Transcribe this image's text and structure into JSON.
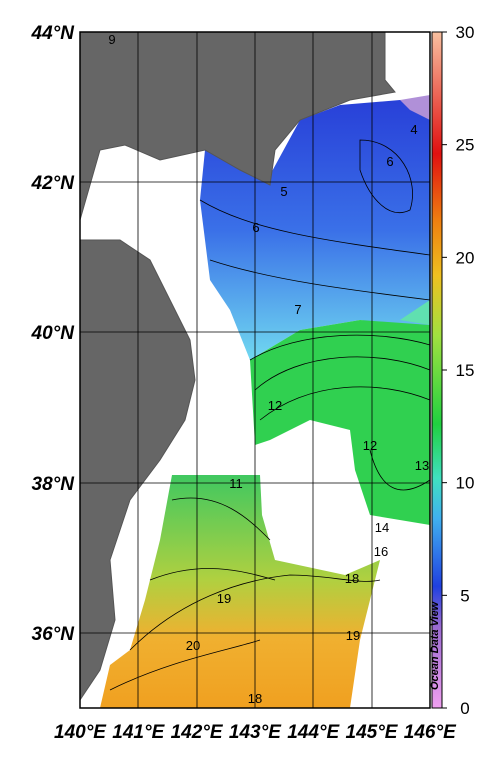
{
  "map": {
    "lat_labels": [
      "44°N",
      "42°N",
      "40°N",
      "38°N",
      "36°N"
    ],
    "lon_labels": [
      "140°E",
      "141°E",
      "142°E",
      "143°E",
      "144°E",
      "145°E",
      "146°E"
    ],
    "colorbar": {
      "lim": [
        0,
        30
      ],
      "ticks": [
        0,
        5,
        10,
        15,
        20,
        25,
        30
      ]
    },
    "contour_labels": [
      "9",
      "4",
      "6",
      "5",
      "6",
      "7",
      "12",
      "11",
      "12",
      "13",
      "14",
      "16",
      "18",
      "19",
      "20",
      "19",
      "18"
    ],
    "credit": "Ocean Data View"
  }
}
